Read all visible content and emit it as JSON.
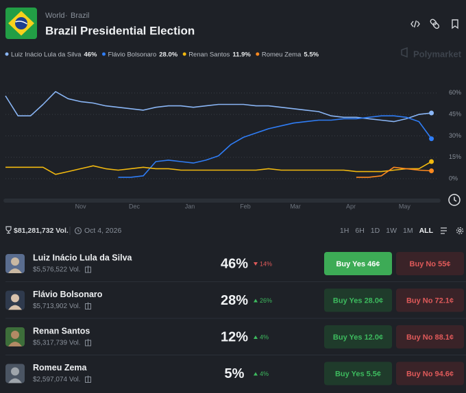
{
  "header": {
    "breadcrumb": [
      "World",
      "Brazil"
    ],
    "title": "Brazil Presidential Election",
    "watermark": "Polymarket"
  },
  "chart_data": {
    "type": "line",
    "x": [
      0,
      7,
      14,
      21,
      28,
      35,
      42,
      49,
      56,
      63,
      70,
      77,
      84,
      91,
      98,
      105,
      112,
      119,
      126,
      133,
      140,
      147,
      154,
      161,
      168,
      175,
      182,
      189,
      196,
      203,
      210,
      217,
      224,
      231,
      238
    ],
    "xlim": [
      0,
      242
    ],
    "xticks": [
      {
        "value": 42,
        "label": "Nov"
      },
      {
        "value": 72,
        "label": "Dec"
      },
      {
        "value": 103,
        "label": "Jan"
      },
      {
        "value": 134,
        "label": "Feb"
      },
      {
        "value": 162,
        "label": "Mar"
      },
      {
        "value": 193,
        "label": "Apr"
      },
      {
        "value": 223,
        "label": "May"
      }
    ],
    "ylim": [
      0,
      70
    ],
    "yticks": [
      {
        "value": 0,
        "label": "0%"
      },
      {
        "value": 15,
        "label": "15%"
      },
      {
        "value": 30,
        "label": "30%"
      },
      {
        "value": 45,
        "label": "45%"
      },
      {
        "value": 60,
        "label": "60%"
      }
    ],
    "grid": true,
    "series": [
      {
        "name": "Luiz Inácio Lula da Silva",
        "legend_value": "46%",
        "color": "#8ab6f6",
        "values": [
          58,
          44,
          44,
          52,
          61,
          56,
          54,
          53,
          51,
          50,
          49,
          48,
          50,
          51,
          51,
          50,
          51,
          52,
          52,
          52,
          51,
          51,
          50,
          49,
          48,
          47,
          44,
          43,
          43,
          42,
          41,
          40,
          42,
          45,
          46
        ]
      },
      {
        "name": "Flávio Bolsonaro",
        "legend_value": "28.0%",
        "color": "#2f7df6",
        "values": [
          null,
          null,
          null,
          null,
          null,
          null,
          null,
          null,
          null,
          1,
          1,
          2,
          12,
          13,
          12,
          11,
          13,
          16,
          24,
          29,
          32,
          35,
          37,
          39,
          40,
          41,
          41,
          42,
          42,
          43,
          44,
          44,
          43,
          40,
          28
        ]
      },
      {
        "name": "Renan Santos",
        "legend_value": "11.9%",
        "color": "#f2b90f",
        "values": [
          8,
          8,
          8,
          8,
          3,
          5,
          7,
          9,
          7,
          6,
          7,
          8,
          7,
          7,
          6,
          6,
          6,
          6,
          6,
          6,
          6,
          7,
          6,
          6,
          6,
          6,
          6,
          6,
          5,
          5,
          5,
          6,
          7,
          7,
          12
        ]
      },
      {
        "name": "Romeu Zema",
        "legend_value": "5.5%",
        "color": "#ff8a1f",
        "values": [
          null,
          null,
          null,
          null,
          null,
          null,
          null,
          null,
          null,
          null,
          null,
          null,
          null,
          null,
          null,
          null,
          null,
          null,
          null,
          null,
          null,
          null,
          null,
          null,
          null,
          null,
          null,
          null,
          1,
          1,
          2,
          8,
          7,
          6,
          5.5
        ]
      }
    ]
  },
  "stats": {
    "volume": "$81,281,732 Vol.",
    "end_date": "Oct 4, 2026"
  },
  "ranges": [
    "1H",
    "6H",
    "1D",
    "1W",
    "1M",
    "ALL"
  ],
  "active_range_index": 5,
  "outcomes": [
    {
      "name": "Luiz Inácio Lula da Silva",
      "volume": "$5,576,522 Vol.",
      "chance": "46%",
      "change": "14%",
      "direction": "down",
      "buy_yes": "Buy Yes 46¢",
      "buy_no": "Buy No 55¢",
      "highlight": true
    },
    {
      "name": "Flávio Bolsonaro",
      "volume": "$5,713,902 Vol.",
      "chance": "28%",
      "change": "26%",
      "direction": "up",
      "buy_yes": "Buy Yes 28.0¢",
      "buy_no": "Buy No 72.1¢",
      "highlight": false
    },
    {
      "name": "Renan Santos",
      "volume": "$5,317,739 Vol.",
      "chance": "12%",
      "change": "4%",
      "direction": "up",
      "buy_yes": "Buy Yes 12.0¢",
      "buy_no": "Buy No 88.1¢",
      "highlight": false
    },
    {
      "name": "Romeu Zema",
      "volume": "$2,597,074 Vol.",
      "chance": "5%",
      "change": "4%",
      "direction": "up",
      "buy_yes": "Buy Yes 5.5¢",
      "buy_no": "Buy No 94.6¢",
      "highlight": false
    }
  ]
}
